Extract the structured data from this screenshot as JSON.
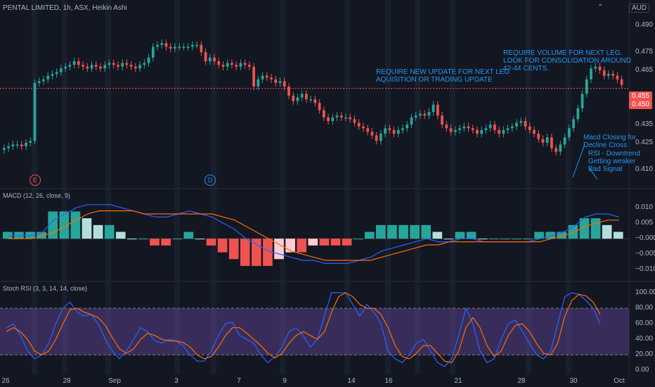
{
  "header": {
    "symbol_title": "PENTAL LIMITED, 1h, ASX, Heikin Ashi",
    "currency": "AUD",
    "collapse_icon": "chevron-up-icon"
  },
  "colors": {
    "up": "#26a69a",
    "down": "#ef5350",
    "background": "#131722",
    "annotation": "#2196f3",
    "macd_line": "#2962ff",
    "signal_line": "#ff6d00",
    "stoch_k": "#2962ff",
    "stoch_d": "#ff6d00",
    "stoch_band": "#7e57c2",
    "hist_up_strong": "#26a69a",
    "hist_up_weak": "#b2dfdb",
    "hist_down_strong": "#ef5350",
    "hist_down_weak": "#ffcdd2"
  },
  "price_tags": {
    "last": "0.455",
    "prev": "0.450"
  },
  "markers": {
    "earnings": "E",
    "dividend": "D"
  },
  "annotations": {
    "volume": "REQUIRE VOLUME FOR NEXT LEG.\nLOOK FOR CONSOLIDATION AROUND\n42-44 CENTS.",
    "update": "REQUIRE NEW UPDATE FOR NEXT LEG\nAQUISITION OR TRADING UPDATE",
    "macd_note": "Macd Closing for\nDecline Cross",
    "rsi_note": "RSI - Downtrend\nGetting weaker\nBad Signal"
  },
  "panes": {
    "macd_label": "MACD (12, 26, close, 9)",
    "stoch_label": "Stoch RSI (3, 3, 14, 14, close)"
  },
  "price_axis": [
    "0.490",
    "0.475",
    "0.465",
    "0.435",
    "0.425",
    "0.410"
  ],
  "macd_axis": [
    "0.010",
    "0.005",
    "−0.000",
    "−0.005",
    "−0.010"
  ],
  "stoch_axis": [
    "100.00",
    "80.00",
    "60.00",
    "40.00",
    "20.00",
    "0.00"
  ],
  "time_axis": [
    "26",
    "28",
    "Sep",
    "3",
    "7",
    "9",
    "14",
    "16",
    "21",
    "28",
    "30",
    "Oct"
  ],
  "chart_data": {
    "type": "candlestick",
    "title": "PENTAL LIMITED, 1h, ASX, Heikin Ashi",
    "ylim": [
      0.402,
      0.498
    ],
    "closes": [
      0.422,
      0.423,
      0.424,
      0.424,
      0.423,
      0.425,
      0.426,
      0.458,
      0.459,
      0.46,
      0.462,
      0.463,
      0.464,
      0.466,
      0.467,
      0.468,
      0.47,
      0.468,
      0.467,
      0.466,
      0.468,
      0.467,
      0.466,
      0.468,
      0.469,
      0.468,
      0.467,
      0.469,
      0.468,
      0.467,
      0.466,
      0.468,
      0.469,
      0.472,
      0.478,
      0.479,
      0.48,
      0.478,
      0.477,
      0.478,
      0.478,
      0.478,
      0.478,
      0.479,
      0.479,
      0.475,
      0.47,
      0.472,
      0.47,
      0.468,
      0.467,
      0.469,
      0.468,
      0.467,
      0.469,
      0.468,
      0.467,
      0.456,
      0.46,
      0.462,
      0.461,
      0.46,
      0.458,
      0.459,
      0.456,
      0.451,
      0.448,
      0.45,
      0.452,
      0.449,
      0.449,
      0.447,
      0.443,
      0.439,
      0.437,
      0.439,
      0.44,
      0.439,
      0.439,
      0.438,
      0.436,
      0.434,
      0.433,
      0.431,
      0.429,
      0.426,
      0.43,
      0.433,
      0.432,
      0.43,
      0.432,
      0.433,
      0.435,
      0.439,
      0.44,
      0.441,
      0.44,
      0.442,
      0.446,
      0.44,
      0.435,
      0.433,
      0.431,
      0.432,
      0.433,
      0.434,
      0.433,
      0.432,
      0.43,
      0.432,
      0.433,
      0.435,
      0.432,
      0.43,
      0.432,
      0.433,
      0.434,
      0.436,
      0.437,
      0.434,
      0.432,
      0.43,
      0.427,
      0.425,
      0.428,
      0.422,
      0.42,
      0.424,
      0.428,
      0.433,
      0.438,
      0.444,
      0.452,
      0.46,
      0.466,
      0.467,
      0.465,
      0.462,
      0.463,
      0.462,
      0.46,
      0.457
    ],
    "macd_ylim": [
      -0.012,
      0.013
    ],
    "macd": [
      0.001,
      0.001,
      0.001,
      0.002,
      0.006,
      0.008,
      0.01,
      0.011,
      0.011,
      0.011,
      0.01,
      0.009,
      0.008,
      0.007,
      0.007,
      0.008,
      0.009,
      0.008,
      0.007,
      0.005,
      0.003,
      0.0,
      -0.002,
      -0.004,
      -0.005,
      -0.006,
      -0.007,
      -0.007,
      -0.008,
      -0.008,
      -0.008,
      -0.007,
      -0.006,
      -0.004,
      -0.003,
      -0.002,
      -0.001,
      -0.0,
      -0.001,
      -0.001,
      -0.0,
      0.0,
      -0.001,
      -0.001,
      -0.001,
      -0.001,
      -0.001,
      0.0,
      0.001,
      0.002,
      0.004,
      0.007,
      0.008,
      0.008,
      0.007
    ],
    "signal": [
      0.0,
      0.0,
      0.0,
      0.001,
      0.002,
      0.004,
      0.006,
      0.008,
      0.009,
      0.009,
      0.009,
      0.009,
      0.008,
      0.008,
      0.008,
      0.008,
      0.008,
      0.008,
      0.008,
      0.007,
      0.006,
      0.004,
      0.002,
      0.0,
      -0.002,
      -0.004,
      -0.005,
      -0.006,
      -0.007,
      -0.007,
      -0.007,
      -0.007,
      -0.007,
      -0.006,
      -0.005,
      -0.004,
      -0.003,
      -0.002,
      -0.002,
      -0.001,
      -0.001,
      -0.001,
      -0.001,
      -0.001,
      -0.001,
      -0.001,
      -0.001,
      -0.001,
      -0.0,
      0.001,
      0.002,
      0.004,
      0.005,
      0.006,
      0.006
    ],
    "stoch_ylim": [
      -5,
      110
    ],
    "stoch_k": [
      55,
      60,
      45,
      25,
      15,
      20,
      35,
      60,
      80,
      88,
      75,
      70,
      72,
      60,
      40,
      25,
      15,
      25,
      40,
      55,
      50,
      38,
      35,
      40,
      38,
      32,
      20,
      12,
      12,
      25,
      45,
      60,
      62,
      45,
      40,
      35,
      20,
      10,
      18,
      30,
      50,
      55,
      45,
      30,
      40,
      70,
      100,
      100,
      100,
      85,
      70,
      85,
      75,
      60,
      25,
      15,
      10,
      20,
      35,
      40,
      25,
      10,
      5,
      15,
      45,
      80,
      60,
      25,
      10,
      15,
      40,
      60,
      65,
      50,
      35,
      20,
      15,
      25,
      60,
      95,
      100,
      98,
      90,
      80,
      60
    ],
    "stoch_d": [
      50,
      55,
      50,
      40,
      25,
      20,
      25,
      40,
      60,
      78,
      80,
      75,
      72,
      68,
      58,
      42,
      28,
      22,
      28,
      40,
      48,
      45,
      40,
      38,
      38,
      36,
      30,
      20,
      15,
      18,
      30,
      45,
      55,
      55,
      48,
      40,
      32,
      22,
      16,
      22,
      35,
      45,
      50,
      45,
      40,
      50,
      75,
      95,
      100,
      95,
      85,
      80,
      80,
      72,
      55,
      32,
      18,
      15,
      22,
      32,
      32,
      22,
      12,
      10,
      25,
      55,
      68,
      55,
      32,
      18,
      25,
      45,
      58,
      60,
      50,
      35,
      22,
      20,
      35,
      70,
      90,
      98,
      96,
      88,
      72
    ]
  }
}
